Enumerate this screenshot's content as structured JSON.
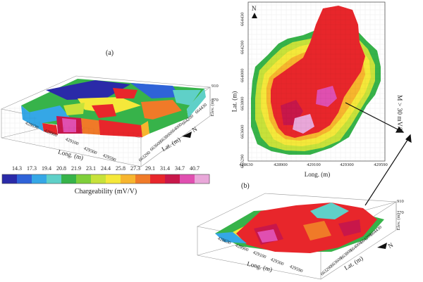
{
  "panels": {
    "a": {
      "label": "(a)",
      "long_ticks": [
        "428630",
        "428900",
        "429100",
        "429300",
        "429590"
      ],
      "lat_ticks": [
        "663290",
        "663600",
        "663800",
        "664000",
        "664200",
        "664430"
      ],
      "elev_ticks": [
        "910",
        "770"
      ],
      "x_axis_label": "Long. (m)",
      "y_axis_label": "Lat. (m)",
      "z_axis_label": "Elev. (m)",
      "north": "N"
    },
    "b": {
      "label": "(b)",
      "north": "N",
      "x_axis_label": "Long. (m)",
      "y_axis_label": "Lat. (m)",
      "x_ticks": [
        "428630",
        "428900",
        "429100",
        "429300",
        "429590"
      ],
      "y_ticks": [
        "664430",
        "664200",
        "664000",
        "663800",
        "663600",
        "663290"
      ]
    },
    "c": {
      "long_ticks": [
        "428630",
        "428900",
        "429100",
        "429300",
        "429590"
      ],
      "lat_ticks": [
        "663290",
        "663600",
        "663800",
        "664000",
        "664200",
        "664430"
      ],
      "elev_ticks": [
        "910",
        "770"
      ],
      "x_axis_label": "Long. (m)",
      "y_axis_label": "Lat. (m)",
      "z_axis_label": "Elev. (m)",
      "north": "N"
    }
  },
  "colorbar": {
    "title": "Chargeability (mV/V)",
    "ticks": [
      "14.3",
      "17.3",
      "19.4",
      "20.8",
      "21.9",
      "23.1",
      "24.4",
      "25.8",
      "27.3",
      "29.1",
      "31.4",
      "34.7",
      "40.7"
    ],
    "colors": [
      "#2a2aa8",
      "#2f63d8",
      "#35a7e6",
      "#5fd0c8",
      "#37b34a",
      "#7fcf3a",
      "#c7e23a",
      "#f5e83a",
      "#f7b52e",
      "#f07a28",
      "#e8262b",
      "#c8174a",
      "#e04fb0",
      "#e9a7d9"
    ]
  },
  "annotation": {
    "threshold_label": "M > 30 mV/V"
  }
}
